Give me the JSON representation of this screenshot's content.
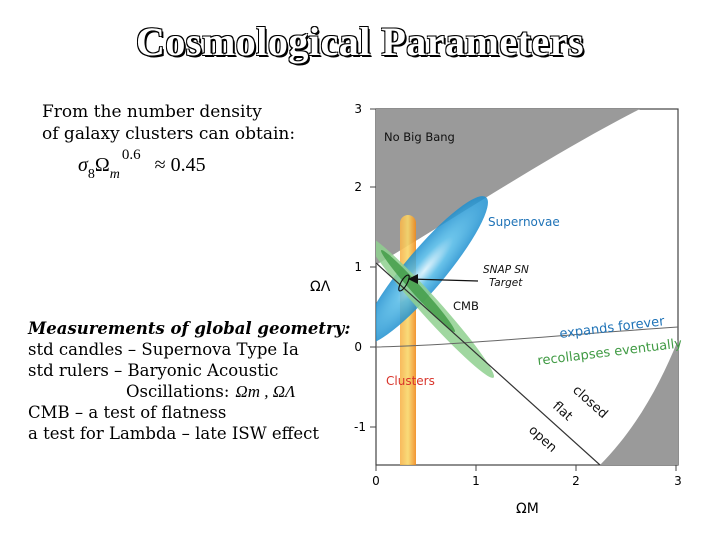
{
  "slide": {
    "title": "Cosmological Parameters",
    "intro_line1": "From the number density",
    "intro_line2": "of galaxy clusters can obtain:",
    "formula": {
      "sigma": "σ",
      "sigma_sub": "8",
      "omega": "Ω",
      "omega_sub": "m",
      "exponent": "0.6",
      "relation": "≈ 0.45"
    },
    "measurements": {
      "heading": "Measurements of global geometry:",
      "line1": "std candles – Supernova Type Ia",
      "line2": "std rulers – Baryonic Acoustic",
      "line3": "Oscillations:",
      "line3_symbols": "Ωm , ΩΛ",
      "line4": "CMB – a test of flatness",
      "line5": "a test for Lambda – late ISW effect"
    }
  },
  "diagram": {
    "y_axis_label": "ΩΛ",
    "x_axis_label": "ΩM",
    "y_ticks": [
      "3",
      "2",
      "1",
      "0",
      "-1"
    ],
    "x_ticks": [
      "0",
      "1",
      "2",
      "3"
    ],
    "labels": {
      "no_big_bang": "No Big Bang",
      "supernovae": "Supernovae",
      "snap_line1": "SNAP SN",
      "snap_line2": "Target",
      "cmb": "CMB",
      "clusters": "Clusters",
      "expands_forever": "expands forever",
      "recollapses": "recollapses eventually",
      "closed": "closed",
      "flat": "flat",
      "open": "open"
    },
    "colors": {
      "grey_region": "#9a9a9a",
      "supernovae": "#2ba3dc",
      "clusters": "#f29a1f",
      "cmb": "#79c37a",
      "blue_text": "#1f73b7",
      "green_text": "#3f9a43",
      "red_text": "#d9342b"
    }
  }
}
